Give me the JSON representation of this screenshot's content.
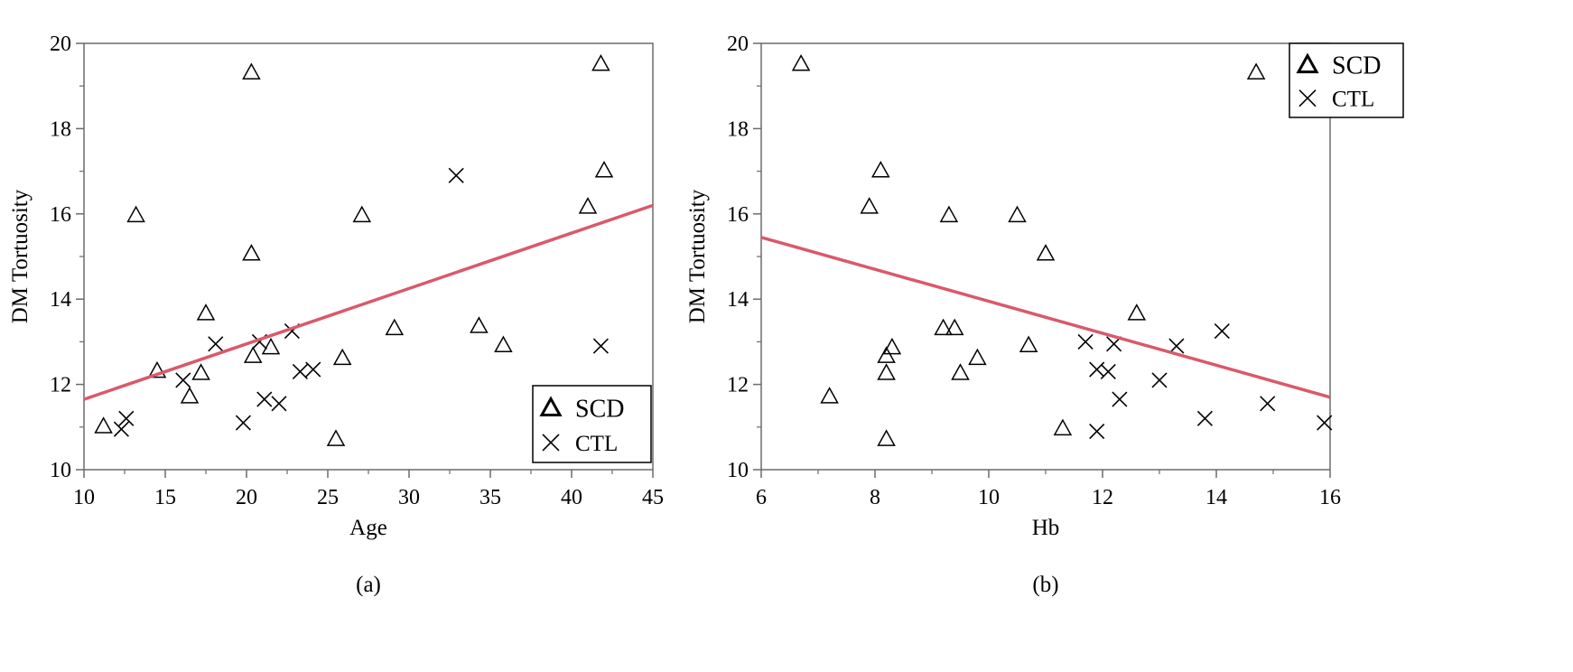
{
  "chart_data": [
    {
      "type": "scatter",
      "panel_label": "(a)",
      "xlabel": "Age",
      "ylabel": "DM Tortuosity",
      "xlim": [
        10,
        45
      ],
      "ylim": [
        10,
        20
      ],
      "xticks": [
        10,
        15,
        20,
        25,
        30,
        35,
        40,
        45
      ],
      "yticks": [
        10,
        12,
        14,
        16,
        18,
        20
      ],
      "legend_position": "bottom-right",
      "trend_line": {
        "x": [
          10,
          45
        ],
        "y": [
          11.65,
          16.2
        ],
        "color": "#d9596b"
      },
      "series": [
        {
          "name": "SCD",
          "marker": "triangle",
          "points": [
            [
              11.2,
              11.0
            ],
            [
              13.2,
              15.95
            ],
            [
              14.5,
              12.3
            ],
            [
              16.5,
              11.7
            ],
            [
              17.2,
              12.25
            ],
            [
              17.5,
              13.65
            ],
            [
              20.3,
              19.3
            ],
            [
              20.3,
              15.05
            ],
            [
              20.4,
              12.65
            ],
            [
              21.5,
              12.85
            ],
            [
              25.5,
              10.7
            ],
            [
              25.9,
              12.6
            ],
            [
              27.1,
              15.95
            ],
            [
              29.1,
              13.3
            ],
            [
              34.3,
              13.35
            ],
            [
              35.8,
              12.9
            ],
            [
              41.0,
              16.15
            ],
            [
              41.8,
              19.5
            ],
            [
              42.0,
              17.0
            ]
          ]
        },
        {
          "name": "CTL",
          "marker": "x",
          "points": [
            [
              12.3,
              10.95
            ],
            [
              12.6,
              11.2
            ],
            [
              16.1,
              12.1
            ],
            [
              18.1,
              12.95
            ],
            [
              19.8,
              11.1
            ],
            [
              20.8,
              13.0
            ],
            [
              21.1,
              11.65
            ],
            [
              22.0,
              11.55
            ],
            [
              22.8,
              13.25
            ],
            [
              23.3,
              12.3
            ],
            [
              24.1,
              12.35
            ],
            [
              32.9,
              16.9
            ],
            [
              41.8,
              12.9
            ]
          ]
        }
      ]
    },
    {
      "type": "scatter",
      "panel_label": "(b)",
      "xlabel": "Hb",
      "ylabel": "DM Tortuosity",
      "xlim": [
        6,
        16
      ],
      "ylim": [
        10,
        20
      ],
      "xticks": [
        6,
        8,
        10,
        12,
        14,
        16
      ],
      "yticks": [
        10,
        12,
        14,
        16,
        18,
        20
      ],
      "legend_position": "top-right",
      "trend_line": {
        "x": [
          6,
          16
        ],
        "y": [
          15.45,
          11.7
        ],
        "color": "#d9596b"
      },
      "series": [
        {
          "name": "SCD",
          "marker": "triangle",
          "points": [
            [
              6.7,
              19.5
            ],
            [
              7.2,
              11.7
            ],
            [
              7.9,
              16.15
            ],
            [
              8.1,
              17.0
            ],
            [
              8.2,
              12.65
            ],
            [
              8.2,
              12.25
            ],
            [
              8.2,
              10.7
            ],
            [
              8.3,
              12.85
            ],
            [
              9.2,
              13.3
            ],
            [
              9.3,
              15.95
            ],
            [
              9.4,
              13.3
            ],
            [
              9.5,
              12.25
            ],
            [
              9.8,
              12.6
            ],
            [
              10.5,
              15.95
            ],
            [
              10.7,
              12.9
            ],
            [
              11.0,
              15.05
            ],
            [
              11.3,
              10.95
            ],
            [
              12.6,
              13.65
            ],
            [
              14.7,
              19.3
            ]
          ]
        },
        {
          "name": "CTL",
          "marker": "x",
          "points": [
            [
              11.7,
              13.0
            ],
            [
              11.9,
              12.35
            ],
            [
              11.9,
              10.9
            ],
            [
              12.1,
              12.3
            ],
            [
              12.2,
              12.95
            ],
            [
              12.3,
              11.65
            ],
            [
              13.0,
              12.1
            ],
            [
              13.3,
              12.9
            ],
            [
              13.8,
              11.2
            ],
            [
              14.1,
              13.25
            ],
            [
              14.9,
              11.55
            ],
            [
              15.9,
              11.1
            ]
          ]
        }
      ]
    }
  ]
}
